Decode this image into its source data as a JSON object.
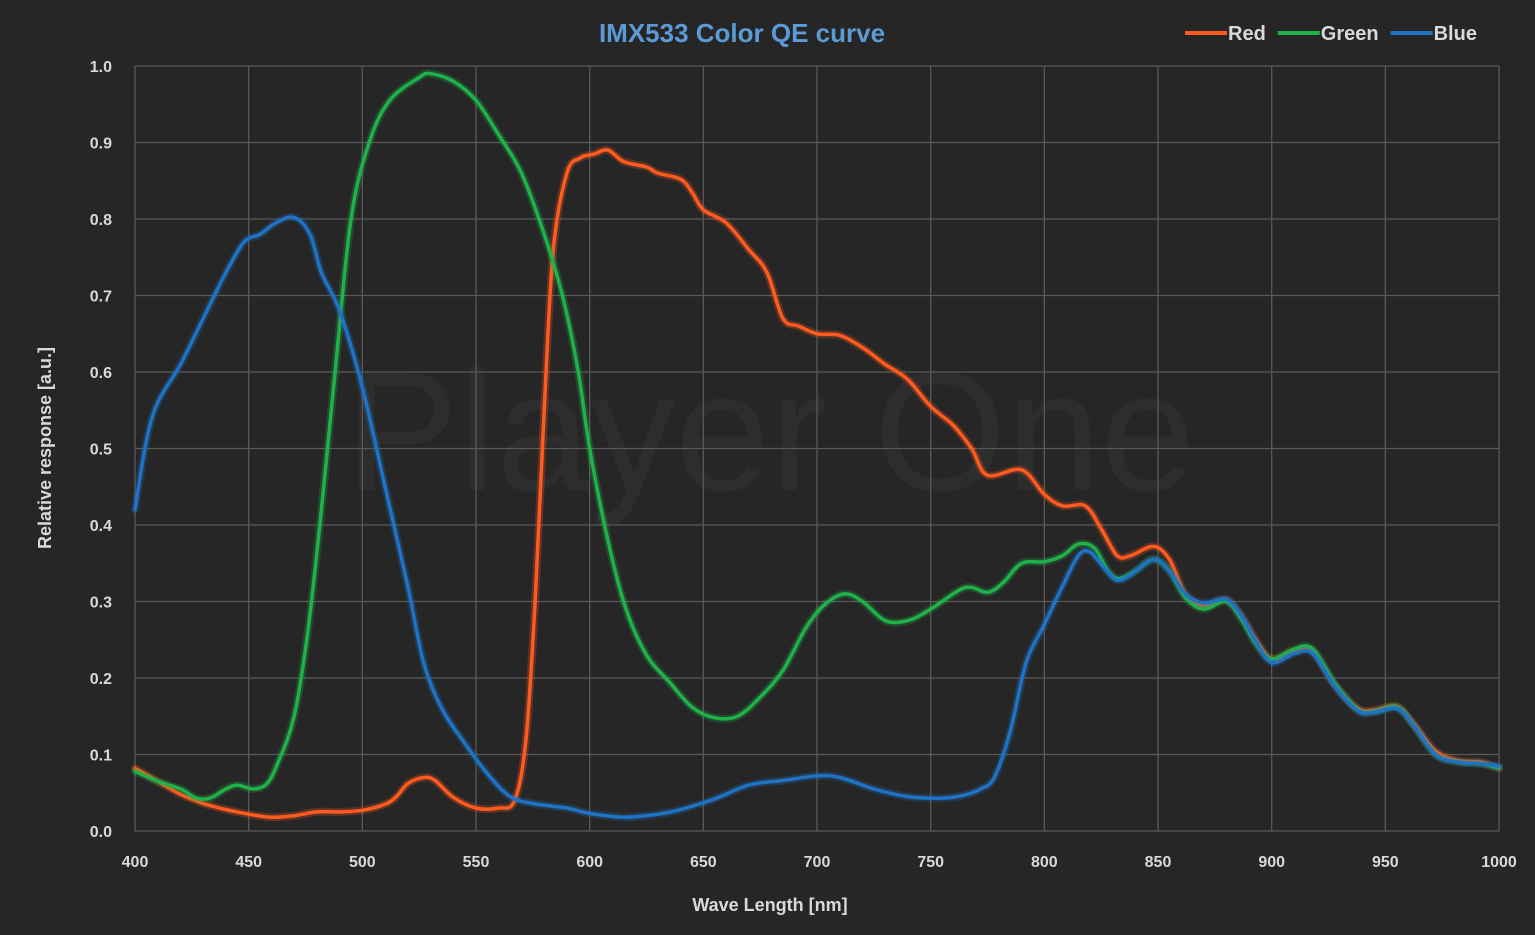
{
  "chart_data": {
    "type": "line",
    "title": "IMX533 Color QE curve",
    "xlabel": "Wave Length [nm]",
    "ylabel": "Relative response [a.u.]",
    "watermark": "Player One",
    "xlim": [
      400,
      1000
    ],
    "ylim": [
      0,
      1.0
    ],
    "x_ticks": [
      400,
      450,
      500,
      550,
      600,
      650,
      700,
      750,
      800,
      850,
      900,
      950,
      1000
    ],
    "y_ticks": [
      0.0,
      0.1,
      0.2,
      0.3,
      0.4,
      0.5,
      0.6,
      0.7,
      0.8,
      0.9,
      1.0
    ],
    "x_tick_labels": [
      "400",
      "450",
      "500",
      "550",
      "600",
      "650",
      "700",
      "750",
      "800",
      "850",
      "900",
      "950",
      "1000"
    ],
    "y_tick_labels": [
      "0.0",
      "0.1",
      "0.2",
      "0.3",
      "0.4",
      "0.5",
      "0.6",
      "0.7",
      "0.8",
      "0.9",
      "1.0"
    ],
    "grid": true,
    "legend_position": "top-right",
    "series": [
      {
        "name": "Red",
        "color": "#ff5a1f",
        "points": [
          [
            400,
            0.082
          ],
          [
            410,
            0.065
          ],
          [
            420,
            0.048
          ],
          [
            430,
            0.036
          ],
          [
            440,
            0.028
          ],
          [
            450,
            0.022
          ],
          [
            460,
            0.018
          ],
          [
            470,
            0.02
          ],
          [
            480,
            0.025
          ],
          [
            490,
            0.025
          ],
          [
            500,
            0.027
          ],
          [
            510,
            0.035
          ],
          [
            515,
            0.045
          ],
          [
            520,
            0.062
          ],
          [
            527,
            0.07
          ],
          [
            532,
            0.066
          ],
          [
            540,
            0.044
          ],
          [
            550,
            0.03
          ],
          [
            560,
            0.03
          ],
          [
            567,
            0.04
          ],
          [
            572,
            0.12
          ],
          [
            576,
            0.3
          ],
          [
            580,
            0.55
          ],
          [
            584,
            0.76
          ],
          [
            590,
            0.86
          ],
          [
            596,
            0.88
          ],
          [
            602,
            0.885
          ],
          [
            608,
            0.89
          ],
          [
            615,
            0.875
          ],
          [
            625,
            0.868
          ],
          [
            630,
            0.86
          ],
          [
            640,
            0.852
          ],
          [
            645,
            0.835
          ],
          [
            650,
            0.812
          ],
          [
            660,
            0.795
          ],
          [
            670,
            0.76
          ],
          [
            678,
            0.73
          ],
          [
            685,
            0.67
          ],
          [
            692,
            0.66
          ],
          [
            700,
            0.65
          ],
          [
            710,
            0.648
          ],
          [
            720,
            0.632
          ],
          [
            730,
            0.61
          ],
          [
            740,
            0.59
          ],
          [
            750,
            0.555
          ],
          [
            760,
            0.53
          ],
          [
            768,
            0.5
          ],
          [
            775,
            0.465
          ],
          [
            790,
            0.472
          ],
          [
            800,
            0.44
          ],
          [
            808,
            0.425
          ],
          [
            818,
            0.425
          ],
          [
            825,
            0.395
          ],
          [
            832,
            0.36
          ],
          [
            838,
            0.36
          ],
          [
            848,
            0.372
          ],
          [
            855,
            0.355
          ],
          [
            862,
            0.31
          ],
          [
            870,
            0.295
          ],
          [
            880,
            0.302
          ],
          [
            887,
            0.28
          ],
          [
            893,
            0.25
          ],
          [
            900,
            0.225
          ],
          [
            910,
            0.235
          ],
          [
            918,
            0.235
          ],
          [
            928,
            0.19
          ],
          [
            938,
            0.16
          ],
          [
            945,
            0.158
          ],
          [
            955,
            0.163
          ],
          [
            962,
            0.142
          ],
          [
            972,
            0.105
          ],
          [
            982,
            0.092
          ],
          [
            992,
            0.09
          ],
          [
            1000,
            0.082
          ]
        ]
      },
      {
        "name": "Green",
        "color": "#1fb24a",
        "points": [
          [
            400,
            0.078
          ],
          [
            410,
            0.065
          ],
          [
            420,
            0.055
          ],
          [
            427,
            0.043
          ],
          [
            433,
            0.043
          ],
          [
            440,
            0.055
          ],
          [
            445,
            0.06
          ],
          [
            452,
            0.055
          ],
          [
            458,
            0.062
          ],
          [
            463,
            0.09
          ],
          [
            470,
            0.15
          ],
          [
            476,
            0.26
          ],
          [
            482,
            0.42
          ],
          [
            488,
            0.6
          ],
          [
            495,
            0.8
          ],
          [
            503,
            0.9
          ],
          [
            512,
            0.955
          ],
          [
            525,
            0.985
          ],
          [
            530,
            0.99
          ],
          [
            540,
            0.98
          ],
          [
            550,
            0.955
          ],
          [
            560,
            0.91
          ],
          [
            570,
            0.86
          ],
          [
            580,
            0.78
          ],
          [
            588,
            0.7
          ],
          [
            595,
            0.6
          ],
          [
            600,
            0.5
          ],
          [
            608,
            0.38
          ],
          [
            616,
            0.29
          ],
          [
            625,
            0.23
          ],
          [
            635,
            0.195
          ],
          [
            645,
            0.162
          ],
          [
            655,
            0.148
          ],
          [
            665,
            0.15
          ],
          [
            675,
            0.175
          ],
          [
            685,
            0.21
          ],
          [
            695,
            0.265
          ],
          [
            703,
            0.295
          ],
          [
            712,
            0.31
          ],
          [
            720,
            0.3
          ],
          [
            730,
            0.275
          ],
          [
            740,
            0.275
          ],
          [
            750,
            0.29
          ],
          [
            765,
            0.318
          ],
          [
            775,
            0.312
          ],
          [
            782,
            0.325
          ],
          [
            790,
            0.35
          ],
          [
            800,
            0.352
          ],
          [
            808,
            0.36
          ],
          [
            815,
            0.375
          ],
          [
            822,
            0.37
          ],
          [
            828,
            0.34
          ],
          [
            833,
            0.33
          ],
          [
            840,
            0.34
          ],
          [
            848,
            0.355
          ],
          [
            855,
            0.34
          ],
          [
            862,
            0.305
          ],
          [
            870,
            0.29
          ],
          [
            880,
            0.3
          ],
          [
            887,
            0.275
          ],
          [
            893,
            0.245
          ],
          [
            900,
            0.225
          ],
          [
            910,
            0.238
          ],
          [
            918,
            0.238
          ],
          [
            928,
            0.192
          ],
          [
            938,
            0.158
          ],
          [
            945,
            0.156
          ],
          [
            955,
            0.162
          ],
          [
            962,
            0.14
          ],
          [
            972,
            0.1
          ],
          [
            982,
            0.09
          ],
          [
            992,
            0.088
          ],
          [
            1000,
            0.082
          ]
        ]
      },
      {
        "name": "Blue",
        "color": "#1f73c4",
        "points": [
          [
            400,
            0.42
          ],
          [
            405,
            0.51
          ],
          [
            410,
            0.56
          ],
          [
            420,
            0.61
          ],
          [
            430,
            0.67
          ],
          [
            440,
            0.73
          ],
          [
            448,
            0.77
          ],
          [
            455,
            0.78
          ],
          [
            462,
            0.795
          ],
          [
            470,
            0.802
          ],
          [
            477,
            0.78
          ],
          [
            482,
            0.73
          ],
          [
            490,
            0.68
          ],
          [
            500,
            0.58
          ],
          [
            510,
            0.45
          ],
          [
            520,
            0.32
          ],
          [
            527,
            0.22
          ],
          [
            535,
            0.16
          ],
          [
            545,
            0.115
          ],
          [
            555,
            0.075
          ],
          [
            565,
            0.045
          ],
          [
            575,
            0.036
          ],
          [
            590,
            0.03
          ],
          [
            600,
            0.023
          ],
          [
            615,
            0.018
          ],
          [
            630,
            0.022
          ],
          [
            640,
            0.028
          ],
          [
            655,
            0.042
          ],
          [
            670,
            0.06
          ],
          [
            685,
            0.066
          ],
          [
            700,
            0.072
          ],
          [
            710,
            0.07
          ],
          [
            725,
            0.055
          ],
          [
            740,
            0.045
          ],
          [
            755,
            0.043
          ],
          [
            765,
            0.047
          ],
          [
            772,
            0.055
          ],
          [
            778,
            0.07
          ],
          [
            785,
            0.13
          ],
          [
            792,
            0.22
          ],
          [
            800,
            0.27
          ],
          [
            808,
            0.32
          ],
          [
            815,
            0.36
          ],
          [
            820,
            0.365
          ],
          [
            826,
            0.345
          ],
          [
            832,
            0.328
          ],
          [
            838,
            0.335
          ],
          [
            848,
            0.355
          ],
          [
            855,
            0.34
          ],
          [
            862,
            0.31
          ],
          [
            870,
            0.298
          ],
          [
            880,
            0.303
          ],
          [
            887,
            0.28
          ],
          [
            893,
            0.248
          ],
          [
            900,
            0.22
          ],
          [
            910,
            0.232
          ],
          [
            918,
            0.232
          ],
          [
            928,
            0.188
          ],
          [
            938,
            0.157
          ],
          [
            945,
            0.155
          ],
          [
            955,
            0.16
          ],
          [
            962,
            0.14
          ],
          [
            972,
            0.1
          ],
          [
            982,
            0.09
          ],
          [
            992,
            0.088
          ],
          [
            1000,
            0.085
          ]
        ]
      }
    ]
  }
}
